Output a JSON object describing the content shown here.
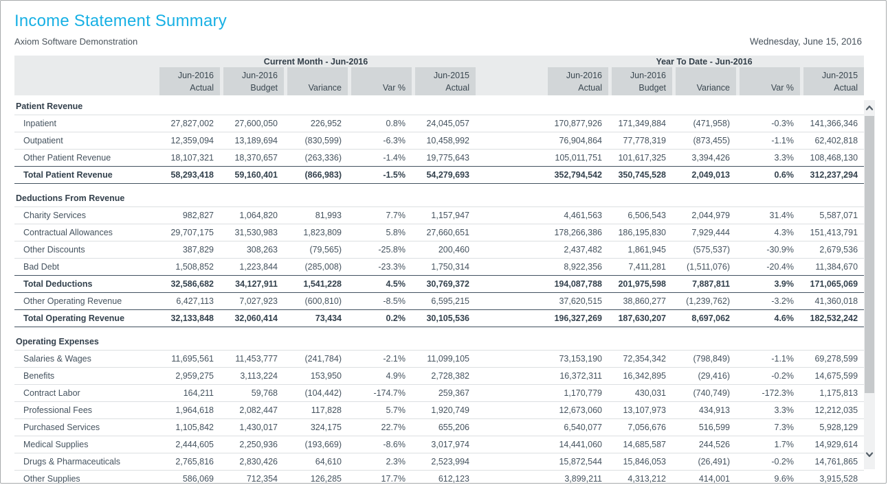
{
  "page": {
    "title": "Income Statement Summary",
    "subtitle": "Axiom Software Demonstration",
    "date": "Wednesday, June 15, 2016"
  },
  "colors": {
    "title_accent": "#17b0e4",
    "header_band": "#e9ebec",
    "header_cell": "#d2d6d8",
    "total_rule": "#40505e",
    "row_rule": "#dcdfe1"
  },
  "table": {
    "groups": [
      {
        "label": "Current Month - Jun-2016"
      },
      {
        "label": "Year To Date - Jun-2016"
      }
    ],
    "columns": [
      {
        "top": "Jun-2016",
        "bottom": "Actual"
      },
      {
        "top": "Jun-2016",
        "bottom": "Budget"
      },
      {
        "top": "",
        "bottom": "Variance"
      },
      {
        "top": "",
        "bottom": "Var %"
      },
      {
        "top": "Jun-2015",
        "bottom": "Actual"
      }
    ],
    "sections": [
      {
        "header": "Patient Revenue",
        "rows": [
          {
            "label": "Inpatient",
            "type": "normal",
            "cm": [
              "27,827,002",
              "27,600,050",
              "226,952",
              "0.8%",
              "24,045,057"
            ],
            "ytd": [
              "170,877,926",
              "171,349,884",
              "(471,958)",
              "-0.3%",
              "141,366,346"
            ]
          },
          {
            "label": "Outpatient",
            "type": "normal",
            "cm": [
              "12,359,094",
              "13,189,694",
              "(830,599)",
              "-6.3%",
              "10,458,992"
            ],
            "ytd": [
              "76,904,864",
              "77,778,319",
              "(873,455)",
              "-1.1%",
              "62,402,818"
            ]
          },
          {
            "label": "Other Patient Revenue",
            "type": "normal",
            "cm": [
              "18,107,321",
              "18,370,657",
              "(263,336)",
              "-1.4%",
              "19,775,643"
            ],
            "ytd": [
              "105,011,751",
              "101,617,325",
              "3,394,426",
              "3.3%",
              "108,468,130"
            ]
          },
          {
            "label": "Total Patient Revenue",
            "type": "total",
            "cm": [
              "58,293,418",
              "59,160,401",
              "(866,983)",
              "-1.5%",
              "54,279,693"
            ],
            "ytd": [
              "352,794,542",
              "350,745,528",
              "2,049,013",
              "0.6%",
              "312,237,294"
            ]
          }
        ]
      },
      {
        "header": "Deductions From Revenue",
        "rows": [
          {
            "label": "Charity Services",
            "type": "normal",
            "cm": [
              "982,827",
              "1,064,820",
              "81,993",
              "7.7%",
              "1,157,947"
            ],
            "ytd": [
              "4,461,563",
              "6,506,543",
              "2,044,979",
              "31.4%",
              "5,587,071"
            ]
          },
          {
            "label": "Contractual Allowances",
            "type": "normal",
            "cm": [
              "29,707,175",
              "31,530,983",
              "1,823,809",
              "5.8%",
              "27,660,651"
            ],
            "ytd": [
              "178,266,386",
              "186,195,830",
              "7,929,444",
              "4.3%",
              "151,413,791"
            ]
          },
          {
            "label": "Other Discounts",
            "type": "normal",
            "cm": [
              "387,829",
              "308,263",
              "(79,565)",
              "-25.8%",
              "200,460"
            ],
            "ytd": [
              "2,437,482",
              "1,861,945",
              "(575,537)",
              "-30.9%",
              "2,679,536"
            ]
          },
          {
            "label": "Bad Debt",
            "type": "normal",
            "cm": [
              "1,508,852",
              "1,223,844",
              "(285,008)",
              "-23.3%",
              "1,750,314"
            ],
            "ytd": [
              "8,922,356",
              "7,411,281",
              "(1,511,076)",
              "-20.4%",
              "11,384,670"
            ]
          },
          {
            "label": "Total Deductions",
            "type": "total",
            "cm": [
              "32,586,682",
              "34,127,911",
              "1,541,228",
              "4.5%",
              "30,769,372"
            ],
            "ytd": [
              "194,087,788",
              "201,975,598",
              "7,887,811",
              "3.9%",
              "171,065,069"
            ]
          },
          {
            "label": "Other Operating Revenue",
            "type": "normal",
            "cm": [
              "6,427,113",
              "7,027,923",
              "(600,810)",
              "-8.5%",
              "6,595,215"
            ],
            "ytd": [
              "37,620,515",
              "38,860,277",
              "(1,239,762)",
              "-3.2%",
              "41,360,018"
            ]
          },
          {
            "label": "Total Operating Revenue",
            "type": "total",
            "cm": [
              "32,133,848",
              "32,060,414",
              "73,434",
              "0.2%",
              "30,105,536"
            ],
            "ytd": [
              "196,327,269",
              "187,630,207",
              "8,697,062",
              "4.6%",
              "182,532,242"
            ]
          }
        ]
      },
      {
        "header": "Operating Expenses",
        "rows": [
          {
            "label": "Salaries & Wages",
            "type": "normal",
            "cm": [
              "11,695,561",
              "11,453,777",
              "(241,784)",
              "-2.1%",
              "11,099,105"
            ],
            "ytd": [
              "73,153,190",
              "72,354,342",
              "(798,849)",
              "-1.1%",
              "69,278,599"
            ]
          },
          {
            "label": "Benefits",
            "type": "normal",
            "cm": [
              "2,959,275",
              "3,113,224",
              "153,950",
              "4.9%",
              "2,728,382"
            ],
            "ytd": [
              "16,372,311",
              "16,342,895",
              "(29,416)",
              "-0.2%",
              "14,675,599"
            ]
          },
          {
            "label": "Contract Labor",
            "type": "normal",
            "cm": [
              "164,211",
              "59,768",
              "(104,442)",
              "-174.7%",
              "259,367"
            ],
            "ytd": [
              "1,170,779",
              "430,031",
              "(740,749)",
              "-172.3%",
              "1,175,813"
            ]
          },
          {
            "label": "Professional Fees",
            "type": "normal",
            "cm": [
              "1,964,618",
              "2,082,447",
              "117,828",
              "5.7%",
              "1,920,749"
            ],
            "ytd": [
              "12,673,060",
              "13,107,973",
              "434,913",
              "3.3%",
              "12,212,035"
            ]
          },
          {
            "label": "Purchased Services",
            "type": "normal",
            "cm": [
              "1,105,842",
              "1,430,017",
              "324,175",
              "22.7%",
              "655,206"
            ],
            "ytd": [
              "6,540,077",
              "7,056,676",
              "516,599",
              "7.3%",
              "5,928,129"
            ]
          },
          {
            "label": "Medical Supplies",
            "type": "normal",
            "cm": [
              "2,444,605",
              "2,250,936",
              "(193,669)",
              "-8.6%",
              "3,017,974"
            ],
            "ytd": [
              "14,441,060",
              "14,685,587",
              "244,526",
              "1.7%",
              "14,929,614"
            ]
          },
          {
            "label": "Drugs & Pharmaceuticals",
            "type": "normal",
            "cm": [
              "2,765,816",
              "2,830,426",
              "64,610",
              "2.3%",
              "2,523,994"
            ],
            "ytd": [
              "15,872,544",
              "15,846,053",
              "(26,491)",
              "-0.2%",
              "14,761,865"
            ]
          },
          {
            "label": "Other Supplies",
            "type": "normal",
            "cm": [
              "586,069",
              "712,354",
              "126,285",
              "17.7%",
              "612,123"
            ],
            "ytd": [
              "3,899,211",
              "4,313,212",
              "414,001",
              "9.6%",
              "3,915,528"
            ]
          }
        ]
      }
    ]
  }
}
